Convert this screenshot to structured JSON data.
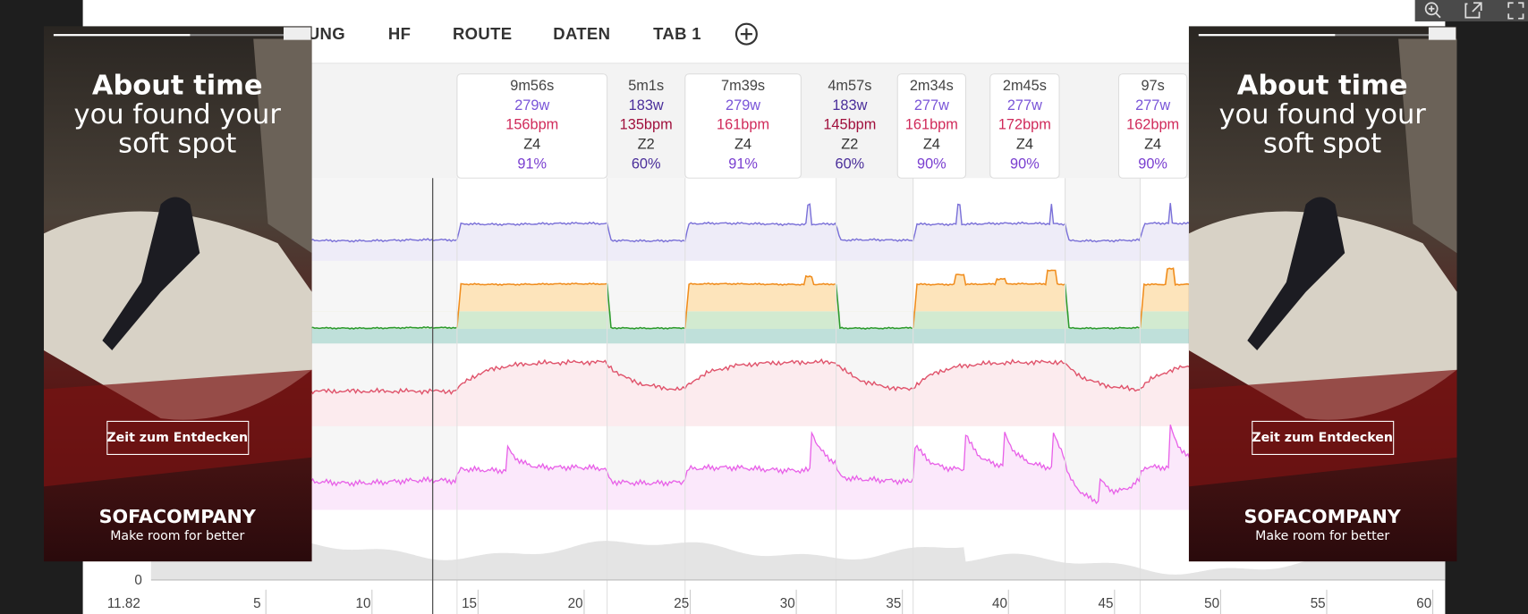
{
  "tabs": [
    "UNG",
    "HF",
    "ROUTE",
    "DATEN",
    "TAB 1"
  ],
  "intervals": [
    {
      "time": "9m56s",
      "power": "279w",
      "hr": "156bpm",
      "zone": "Z4",
      "pct": "91%"
    },
    {
      "time": "5m1s",
      "power": "183w",
      "hr": "135bpm",
      "zone": "Z2",
      "pct": "60%"
    },
    {
      "time": "7m39s",
      "power": "279w",
      "hr": "161bpm",
      "zone": "Z4",
      "pct": "91%"
    },
    {
      "time": "4m57s",
      "power": "183w",
      "hr": "145bpm",
      "zone": "Z2",
      "pct": "60%"
    },
    {
      "time": "2m34s",
      "power": "277w",
      "hr": "161bpm",
      "zone": "Z4",
      "pct": "90%"
    },
    {
      "time": "2m45s",
      "power": "277w",
      "hr": "172bpm",
      "zone": "Z4",
      "pct": "90%"
    },
    {
      "time": "97s",
      "power": "277w",
      "hr": "162bpm",
      "zone": "Z4",
      "pct": "90%"
    }
  ],
  "axis": {
    "left_label": "11.82",
    "zero_label": "0",
    "xlim": [
      0,
      60.4
    ],
    "xticks": [
      5,
      10,
      15,
      20,
      25,
      30,
      35,
      40,
      45,
      50,
      55,
      60
    ]
  },
  "ads": [
    {
      "headline": "About time",
      "line2": "you found your",
      "line3": "soft spot",
      "button": "Zeit zum Entdecken",
      "brand": "SOFACOMPANY",
      "tagline": "Make room for better"
    },
    {
      "headline": "About time",
      "line2": "you found your",
      "line3": "soft spot",
      "button": "Zeit zum Entdecken",
      "brand": "SOFACOMPANY",
      "tagline": "Make room for better"
    }
  ]
}
